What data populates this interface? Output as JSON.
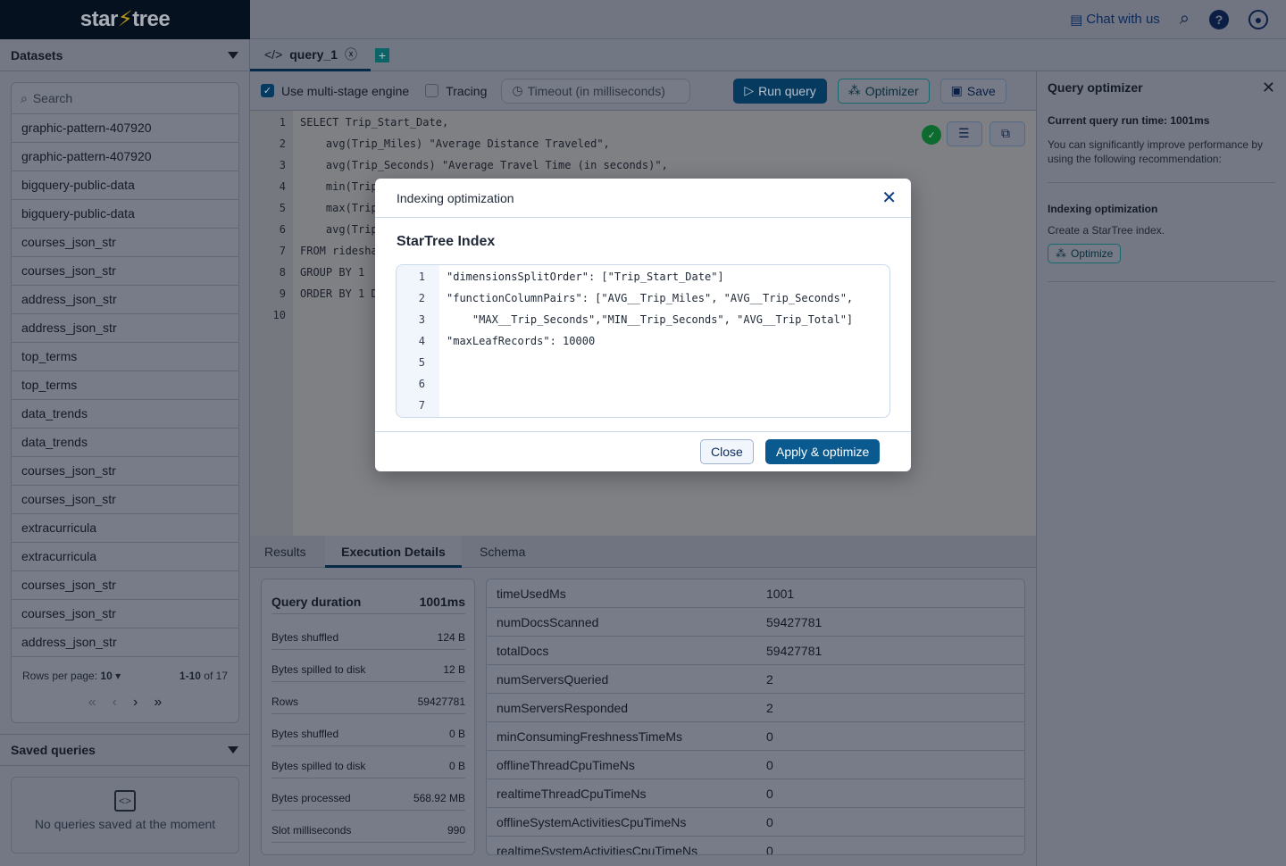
{
  "brand": {
    "logo_left": "star",
    "logo_right": "tree"
  },
  "header": {
    "chat": "Chat with us"
  },
  "sidebar": {
    "datasets_title": "Datasets",
    "search_placeholder": "Search",
    "items": [
      "graphic-pattern-407920",
      "graphic-pattern-407920",
      "bigquery-public-data",
      "bigquery-public-data",
      "courses_json_str",
      "courses_json_str",
      "address_json_str",
      "address_json_str",
      "top_terms",
      "top_terms",
      "data_trends",
      "data_trends",
      "courses_json_str",
      "courses_json_str",
      "extracurricula",
      "extracurricula",
      "courses_json_str",
      "courses_json_str",
      "address_json_str"
    ],
    "rows_per_page_label": "Rows per page:",
    "rows_per_page": "10",
    "range": "1-10",
    "of_total": "of 17",
    "saved_title": "Saved queries",
    "saved_empty": "No queries saved at the moment"
  },
  "tabs": {
    "query_tab": "query_1"
  },
  "toolbar": {
    "multistage": "Use multi-stage engine",
    "multistage_checked": true,
    "tracing": "Tracing",
    "tracing_checked": false,
    "timeout_placeholder": "Timeout (in milliseconds)",
    "run": "Run query",
    "optimizer": "Optimizer",
    "save": "Save"
  },
  "editor": {
    "lines": [
      "SELECT Trip_Start_Date,",
      "    avg(Trip_Miles) \"Average Distance Traveled\",",
      "    avg(Trip_Seconds) \"Average Travel Time (in seconds)\",",
      "    min(Trip",
      "    max(Trip",
      "    avg(Trip",
      "FROM ridesha",
      "GROUP BY 1",
      "ORDER BY 1 D",
      ""
    ]
  },
  "results": {
    "tabs": [
      "Results",
      "Execution Details",
      "Schema"
    ],
    "active_tab": "Execution Details",
    "duration_label": "Query duration",
    "duration_value": "1001ms",
    "details": [
      [
        "Bytes shuffled",
        "124 B"
      ],
      [
        "Bytes spilled to disk",
        "12 B"
      ],
      [
        "Rows",
        "59427781"
      ],
      [
        "Bytes shuffled",
        "0 B"
      ],
      [
        "Bytes spilled to disk",
        "0 B"
      ],
      [
        "Bytes processed",
        "568.92 MB"
      ],
      [
        "Slot milliseconds",
        "990"
      ]
    ],
    "stats": [
      [
        "timeUsedMs",
        "1001"
      ],
      [
        "numDocsScanned",
        "59427781"
      ],
      [
        "totalDocs",
        "59427781"
      ],
      [
        "numServersQueried",
        "2"
      ],
      [
        "numServersResponded",
        "2"
      ],
      [
        "minConsumingFreshnessTimeMs",
        "0"
      ],
      [
        "offlineThreadCpuTimeNs",
        "0"
      ],
      [
        "realtimeThreadCpuTimeNs",
        "0"
      ],
      [
        "offlineSystemActivitiesCpuTimeNs",
        "0"
      ],
      [
        "realtimeSystemActivitiesCpuTimeNs",
        "0"
      ]
    ]
  },
  "optimizer_panel": {
    "title": "Query optimizer",
    "runtime": "Current query run time: 1001ms",
    "desc": "You can significantly improve performance by using the following recommendation:",
    "section_title": "Indexing optimization",
    "section_desc": "Create a StarTree index.",
    "optimize": "Optimize"
  },
  "modal": {
    "title": "Indexing optimization",
    "subtitle": "StarTree Index",
    "lines": [
      "\"dimensionsSplitOrder\": [\"Trip_Start_Date\"]",
      "\"functionColumnPairs\": [\"AVG__Trip_Miles\", \"AVG__Trip_Seconds\",",
      "    \"MAX__Trip_Seconds\",\"MIN__Trip_Seconds\", \"AVG__Trip_Total\"]",
      "\"maxLeafRecords\": 10000",
      "",
      "",
      ""
    ],
    "close": "Close",
    "apply": "Apply & optimize"
  },
  "colors": {
    "primary": "#0b5a8f",
    "teal": "#16a3a3",
    "success": "#16a34a",
    "dark": "#0b1629"
  }
}
